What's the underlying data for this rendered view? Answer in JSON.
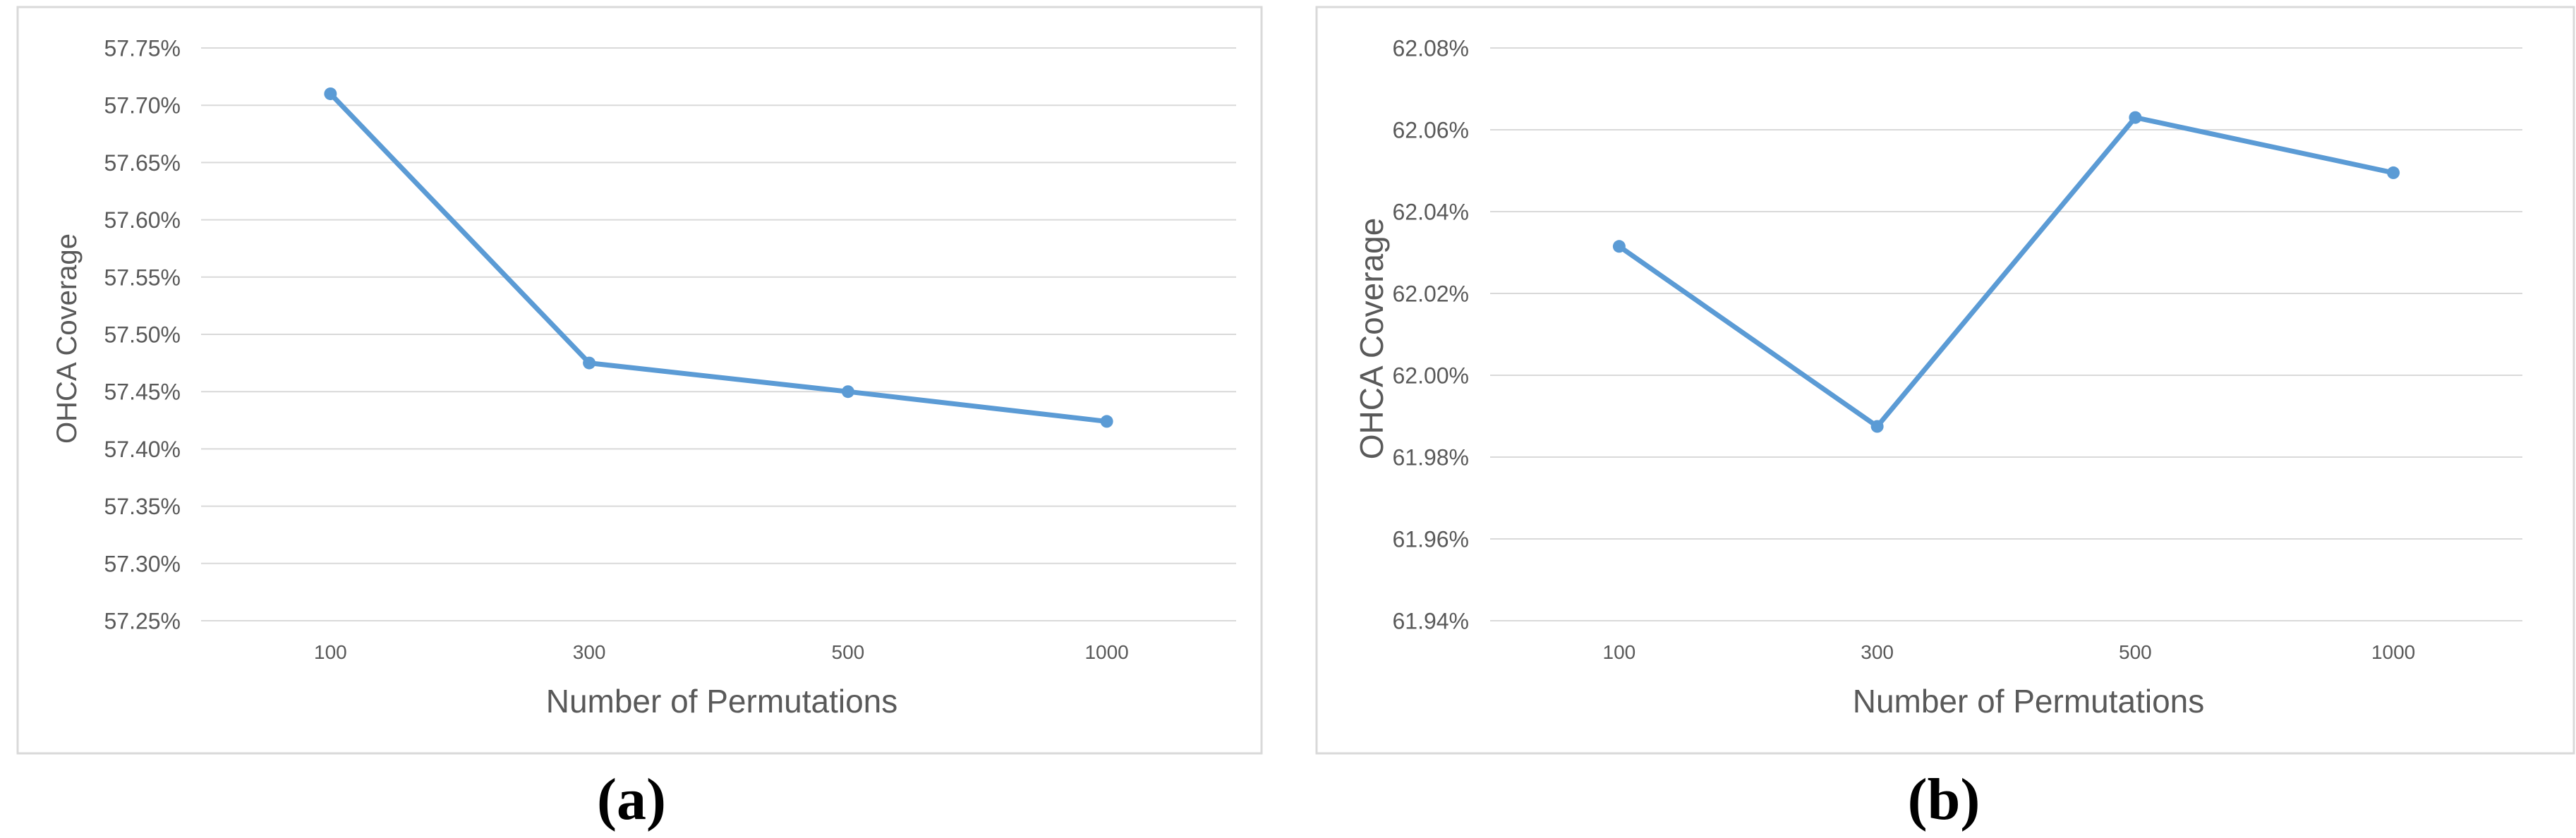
{
  "chart_data": [
    {
      "type": "line",
      "title": "",
      "xlabel": "Number of Permutations",
      "ylabel": "OHCA Coverage",
      "categories": [
        "100",
        "300",
        "500",
        "1000"
      ],
      "series": [
        {
          "values": [
            57.71,
            57.475,
            57.45,
            57.424
          ]
        }
      ],
      "ylim": [
        57.25,
        57.75
      ],
      "ytick_step": 0.05,
      "yticks": [
        "57.25%",
        "57.30%",
        "57.35%",
        "57.40%",
        "57.45%",
        "57.50%",
        "57.55%",
        "57.60%",
        "57.65%",
        "57.70%",
        "57.75%"
      ],
      "grid": true,
      "legend": "none",
      "line_color": "#5B9BD5",
      "caption": "(a)"
    },
    {
      "type": "line",
      "title": "",
      "xlabel": "Number of Permutations",
      "ylabel": "OHCA Coverage",
      "categories": [
        "100",
        "300",
        "500",
        "1000"
      ],
      "series": [
        {
          "values": [
            62.0315,
            61.9875,
            62.063,
            62.0495
          ]
        }
      ],
      "ylim": [
        61.94,
        62.08
      ],
      "ytick_step": 0.02,
      "yticks": [
        "61.94%",
        "61.96%",
        "61.98%",
        "62.00%",
        "62.02%",
        "62.04%",
        "62.06%",
        "62.08%"
      ],
      "grid": true,
      "legend": "none",
      "line_color": "#5B9BD5",
      "caption": "(b)"
    }
  ]
}
